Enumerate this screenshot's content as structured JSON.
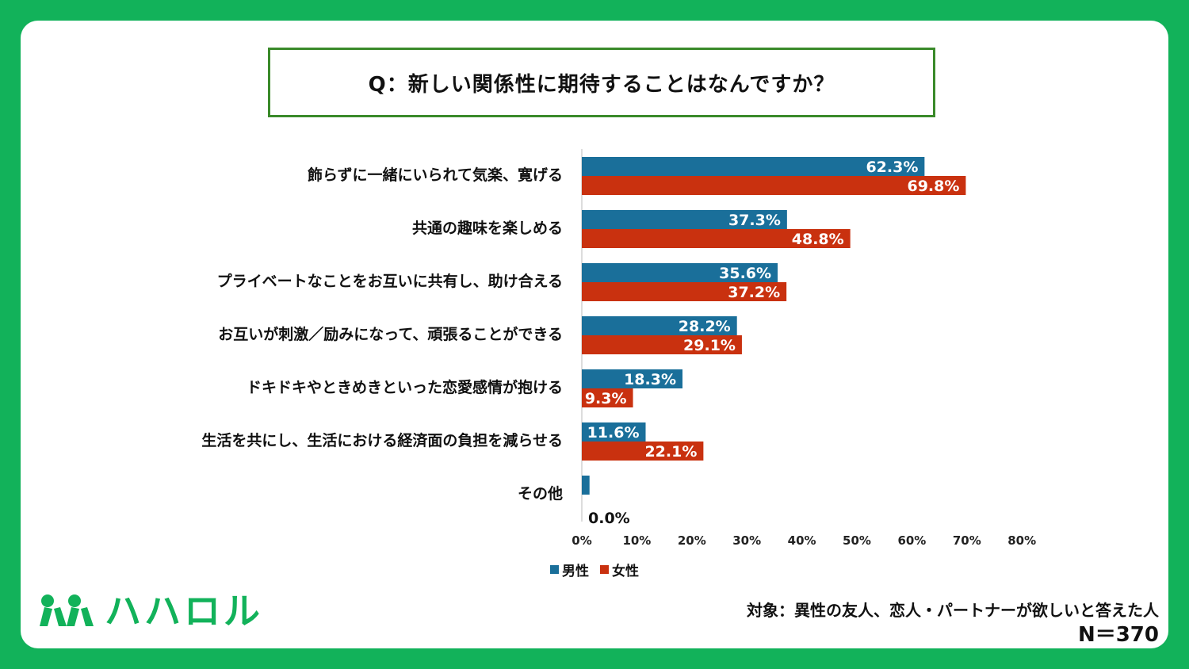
{
  "question": "Q：新しい関係性に期待することはなんですか？",
  "chart_data": {
    "type": "bar",
    "orientation": "horizontal",
    "categories": [
      "飾らずに一緒にいられて気楽、寛げる",
      "共通の趣味を楽しめる",
      "プライベートなことをお互いに共有し、助け合える",
      "お互いが刺激／励みになって、頑張ることができる",
      "ドキドキやときめきといった恋愛感情が抱ける",
      "生活を共にし、生活における経済面の負担を減らせる",
      "その他"
    ],
    "series": [
      {
        "name": "男性",
        "color": "#1a6f9a",
        "values": [
          62.3,
          37.3,
          35.6,
          28.2,
          18.3,
          11.6,
          1.4
        ]
      },
      {
        "name": "女性",
        "color": "#c9310f",
        "values": [
          69.8,
          48.8,
          37.2,
          29.1,
          9.3,
          22.1,
          0.0
        ]
      }
    ],
    "data_labels": [
      [
        "62.3%",
        "37.3%",
        "35.6%",
        "28.2%",
        "18.3%",
        "11.6%",
        ""
      ],
      [
        "69.8%",
        "48.8%",
        "37.2%",
        "29.1%",
        "9.3%",
        "22.1%",
        "0.0%"
      ]
    ],
    "xlim": [
      0,
      80
    ],
    "xticks": [
      "0%",
      "10%",
      "20%",
      "30%",
      "40%",
      "50%",
      "60%",
      "70%",
      "80%"
    ],
    "legend_position": "bottom",
    "grid": false
  },
  "target_text": "対象：異性の友人、恋人・パートナーが欲しいと答えた人",
  "n_text": "N＝370",
  "logo_text": "ハハロル",
  "colors": {
    "background": "#12b25a",
    "male": "#1a6f9a",
    "female": "#c9310f",
    "frame": "#3a8a2a"
  }
}
